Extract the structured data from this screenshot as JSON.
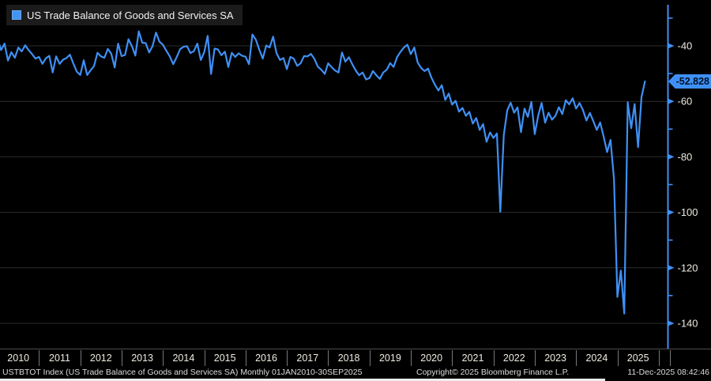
{
  "legend": {
    "label": "US Trade Balance of Goods and Services SA"
  },
  "last_value_badge": "-52.828",
  "footer": {
    "left": "USTBTOT Index (US Trade Balance of Goods and Services SA) Monthly 01JAN2010-30SEP2025",
    "center": "Copyright© 2025 Bloomberg Finance L.P.",
    "right": "11-Dec-2025 08:42:46"
  },
  "colors": {
    "background": "#000000",
    "line": "#3f90f5",
    "axis": "#3f90f5",
    "grid": "#2d2d2d",
    "badge_bg": "#3f90f5",
    "badge_text": "#001226",
    "legend_bg": "#1b1b1b",
    "tick_text": "#eceadf"
  },
  "chart_data": {
    "type": "line",
    "title": "US Trade Balance of Goods and Services SA",
    "x_unit": "monthly",
    "x_start": "Jan 2010",
    "x_end": "Sep 2025",
    "x_tick_labels": [
      "2010",
      "2011",
      "2012",
      "2013",
      "2014",
      "2015",
      "2016",
      "2017",
      "2018",
      "2019",
      "2020",
      "2021",
      "2022",
      "2023",
      "2024",
      "2025"
    ],
    "y_ticks": [
      -40,
      -60,
      -80,
      -100,
      -120,
      -140
    ],
    "y_minor_ticks": [
      -30,
      -50,
      -70,
      -90,
      -110,
      -130
    ],
    "ylim": [
      -148,
      -28
    ],
    "grid": "horizontal-only",
    "legend_position": "top-left",
    "last_point": {
      "date": "Sep 2025",
      "value": -52.828,
      "label": "-52.828"
    },
    "series": [
      {
        "name": "USTBTOT Index",
        "values": [
          -37.5,
          -41.5,
          -39.2,
          -45.3,
          -42.3,
          -44.3,
          -40.6,
          -42.0,
          -39.8,
          -41.5,
          -43.0,
          -44.6,
          -44.0,
          -46.5,
          -44.5,
          -43.6,
          -49.6,
          -43.8,
          -46.5,
          -45.0,
          -44.4,
          -43.2,
          -46.4,
          -49.3,
          -50.5,
          -45.2,
          -50.5,
          -48.8,
          -47.3,
          -42.5,
          -43.8,
          -44.3,
          -41.1,
          -42.8,
          -47.8,
          -39.2,
          -43.7,
          -43.3,
          -37.6,
          -40.1,
          -43.5,
          -34.8,
          -38.9,
          -39.0,
          -42.4,
          -40.1,
          -35.2,
          -38.5,
          -39.6,
          -41.8,
          -43.8,
          -46.6,
          -44.1,
          -41.2,
          -40.3,
          -40.1,
          -42.6,
          -41.9,
          -39.2,
          -45.1,
          -42.3,
          -36.4,
          -50.1,
          -41.0,
          -41.3,
          -43.4,
          -42.1,
          -47.6,
          -42.5,
          -44.0,
          -42.7,
          -43.6,
          -43.9,
          -46.6,
          -35.9,
          -37.8,
          -41.4,
          -44.6,
          -39.9,
          -40.6,
          -36.7,
          -42.6,
          -45.1,
          -44.4,
          -48.4,
          -44.0,
          -44.6,
          -47.2,
          -46.3,
          -43.7,
          -43.8,
          -42.9,
          -44.7,
          -47.5,
          -48.6,
          -50.1,
          -46.3,
          -47.7,
          -48.9,
          -49.6,
          -42.4,
          -45.7,
          -44.1,
          -46.6,
          -48.9,
          -50.6,
          -49.6,
          -52.1,
          -51.6,
          -49.1,
          -50.6,
          -51.9,
          -49.6,
          -48.6,
          -46.2,
          -47.6,
          -44.1,
          -42.2,
          -40.6,
          -39.6,
          -43.0,
          -40.6,
          -46.0,
          -48.0,
          -49.1,
          -48.2,
          -51.5,
          -54.0,
          -56.1,
          -54.2,
          -59.5,
          -57.2,
          -61.2,
          -59.8,
          -63.7,
          -62.4,
          -65.2,
          -63.8,
          -68.0,
          -66.0,
          -70.3,
          -68.2,
          -74.6,
          -71.2,
          -73.2,
          -71.6,
          -99.8,
          -72.2,
          -63.2,
          -60.5,
          -64.1,
          -62.2,
          -71.1,
          -62.6,
          -65.6,
          -60.2,
          -71.8,
          -65.1,
          -60.6,
          -67.7,
          -64.1,
          -66.6,
          -65.2,
          -62.1,
          -64.6,
          -59.6,
          -61.1,
          -58.9,
          -62.6,
          -60.6,
          -63.1,
          -66.9,
          -64.2,
          -67.1,
          -70.3,
          -67.6,
          -72.7,
          -78.3,
          -73.9,
          -88.0,
          -130.5,
          -121.0,
          -136.5,
          -60.3,
          -69.7,
          -61.0,
          -76.5,
          -58.5,
          -52.828
        ]
      }
    ]
  }
}
